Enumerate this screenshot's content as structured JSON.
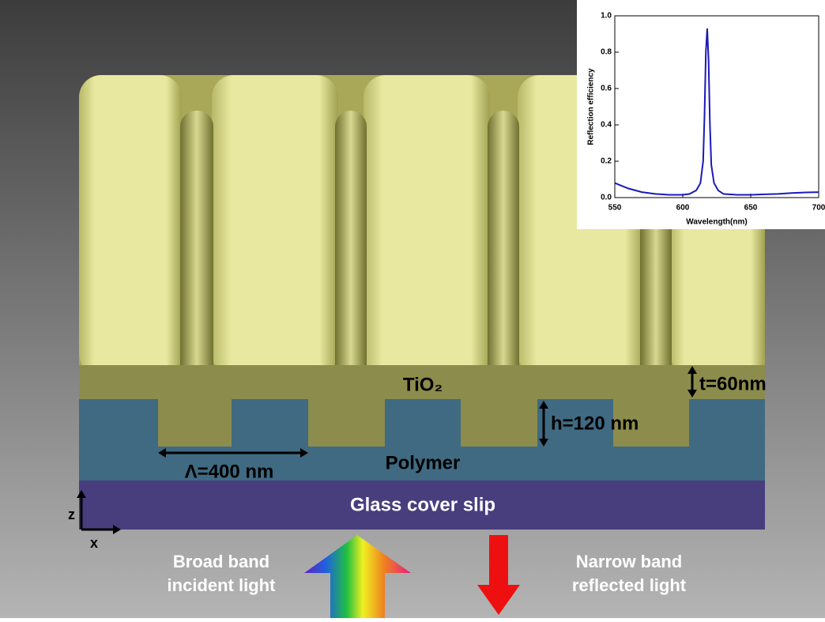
{
  "labels": {
    "tio2": "TiO₂",
    "thickness": "t=60nm",
    "height": "h=120 nm",
    "period": "Λ=400 nm",
    "polymer": "Polymer",
    "glass": "Glass cover slip",
    "axis_z": "z",
    "axis_x": "x",
    "incident": [
      "Broad band",
      "incident light"
    ],
    "reflected": [
      "Narrow band",
      "reflected light"
    ]
  },
  "chart_data": {
    "type": "line",
    "xlabel": "Wavelength(nm)",
    "ylabel": "Reflection efficiency",
    "x": [
      550,
      560,
      570,
      580,
      590,
      600,
      605,
      610,
      613,
      615,
      616,
      617,
      618,
      619,
      620,
      621,
      623,
      626,
      630,
      640,
      650,
      660,
      670,
      680,
      690,
      700
    ],
    "values": [
      0.08,
      0.05,
      0.03,
      0.02,
      0.015,
      0.015,
      0.02,
      0.04,
      0.08,
      0.2,
      0.45,
      0.8,
      0.93,
      0.75,
      0.4,
      0.18,
      0.08,
      0.04,
      0.02,
      0.015,
      0.015,
      0.018,
      0.02,
      0.025,
      0.028,
      0.03
    ],
    "color": "#1a1ab8",
    "xlim": [
      550,
      700
    ],
    "xticks": [
      550,
      600,
      650,
      700
    ],
    "ylim": [
      0,
      1.0
    ],
    "yticks": [
      {
        "value": 0,
        "label": "0.0"
      },
      0.2,
      0.4,
      0.6,
      0.8,
      {
        "value": 1.0,
        "label": "1.0"
      }
    ]
  }
}
